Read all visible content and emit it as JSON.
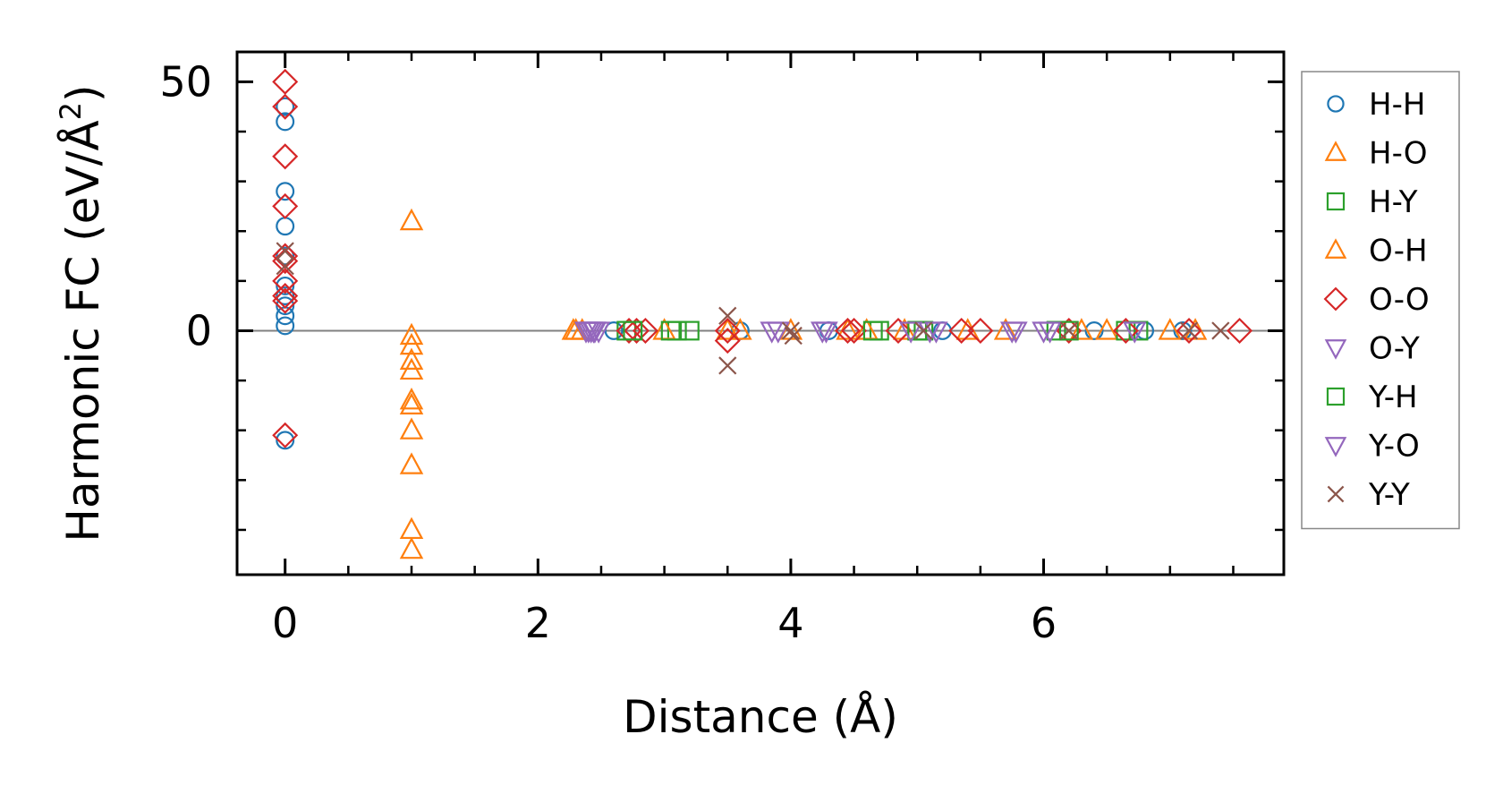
{
  "chart_data": {
    "type": "scatter",
    "title": "",
    "xlabel": "Distance (Å)",
    "ylabel_main": "Harmonic FC (eV/Å",
    "ylabel_sup": "2",
    "ylabel_tail": ")",
    "xlim": [
      -0.38,
      7.9
    ],
    "ylim": [
      -49,
      56
    ],
    "xticks": [
      0,
      2,
      4,
      6
    ],
    "xtick_labels": [
      "0",
      "2",
      "4",
      "6"
    ],
    "yticks": [
      0,
      50
    ],
    "ytick_labels": [
      "0",
      "50"
    ],
    "xminor": [
      0,
      0.5,
      1,
      1.5,
      2,
      2.5,
      3,
      3.5,
      4,
      4.5,
      5,
      5.5,
      6,
      6.5,
      7,
      7.5
    ],
    "yminor": [
      -40,
      -30,
      -20,
      -10,
      0,
      10,
      20,
      30,
      40,
      50
    ],
    "zero_line": true,
    "grid": false,
    "legend_position": "right",
    "series": [
      {
        "name": "H-H",
        "marker": "circle",
        "color": "#1f77b4",
        "points": [
          [
            0,
            45
          ],
          [
            0,
            42
          ],
          [
            0,
            28
          ],
          [
            0,
            21
          ],
          [
            0,
            15
          ],
          [
            0,
            9
          ],
          [
            0,
            7
          ],
          [
            0,
            5
          ],
          [
            0,
            3
          ],
          [
            0,
            1
          ],
          [
            0,
            -22
          ],
          [
            2.6,
            0
          ],
          [
            3.6,
            0
          ],
          [
            4.3,
            0
          ],
          [
            5.2,
            0
          ],
          [
            6.4,
            0
          ],
          [
            6.8,
            0
          ],
          [
            7.1,
            0
          ]
        ]
      },
      {
        "name": "H-O",
        "marker": "triangle-up",
        "color": "#ff7f0e",
        "points": [
          [
            1,
            22
          ],
          [
            1,
            -1
          ],
          [
            1,
            -3
          ],
          [
            1,
            -6
          ],
          [
            1,
            -8
          ],
          [
            1,
            -14
          ],
          [
            1,
            -15
          ],
          [
            1,
            -20
          ],
          [
            1,
            -27
          ],
          [
            1,
            -40
          ],
          [
            1,
            -44
          ],
          [
            2.28,
            0
          ],
          [
            2.35,
            0
          ],
          [
            3.5,
            0
          ],
          [
            3.6,
            0
          ],
          [
            4.45,
            0
          ],
          [
            4.9,
            0
          ],
          [
            5.7,
            0
          ],
          [
            6.5,
            0
          ],
          [
            7.2,
            0
          ]
        ]
      },
      {
        "name": "H-Y",
        "marker": "square",
        "color": "#2ca02c",
        "points": [
          [
            2.7,
            0
          ],
          [
            3.1,
            0
          ],
          [
            3.2,
            0
          ],
          [
            4.7,
            0
          ],
          [
            5.05,
            0
          ],
          [
            6.1,
            0
          ],
          [
            6.65,
            0
          ]
        ]
      },
      {
        "name": "O-H",
        "marker": "triangle-up",
        "color": "#ff7f0e",
        "points": [
          [
            2.3,
            0
          ],
          [
            3.0,
            0
          ],
          [
            4.0,
            0
          ],
          [
            4.6,
            0
          ],
          [
            5.4,
            0
          ],
          [
            6.3,
            0
          ],
          [
            7.0,
            0
          ]
        ]
      },
      {
        "name": "O-O",
        "marker": "diamond",
        "color": "#d62728",
        "points": [
          [
            0,
            50
          ],
          [
            0,
            45
          ],
          [
            0,
            35
          ],
          [
            0,
            25
          ],
          [
            0,
            15
          ],
          [
            0,
            14
          ],
          [
            0,
            10
          ],
          [
            0,
            7
          ],
          [
            0,
            6
          ],
          [
            0,
            -21
          ],
          [
            2.72,
            0
          ],
          [
            2.78,
            0
          ],
          [
            2.85,
            0
          ],
          [
            3.5,
            0
          ],
          [
            3.5,
            -2
          ],
          [
            4.45,
            0
          ],
          [
            4.5,
            0
          ],
          [
            4.85,
            0
          ],
          [
            5.35,
            0
          ],
          [
            5.5,
            0
          ],
          [
            6.2,
            0
          ],
          [
            6.65,
            0
          ],
          [
            7.15,
            0
          ],
          [
            7.55,
            0
          ]
        ]
      },
      {
        "name": "O-Y",
        "marker": "triangle-down",
        "color": "#9467bd",
        "points": [
          [
            2.38,
            0
          ],
          [
            2.42,
            0
          ],
          [
            2.45,
            0
          ],
          [
            2.48,
            0
          ],
          [
            3.85,
            0
          ],
          [
            4.25,
            0
          ],
          [
            5.1,
            0
          ],
          [
            5.75,
            0
          ],
          [
            6.0,
            0
          ]
        ]
      },
      {
        "name": "Y-H",
        "marker": "square",
        "color": "#2ca02c",
        "points": [
          [
            2.75,
            0
          ],
          [
            3.05,
            0
          ],
          [
            4.65,
            0
          ],
          [
            5.0,
            0
          ],
          [
            6.2,
            0
          ],
          [
            6.75,
            0
          ]
        ]
      },
      {
        "name": "Y-O",
        "marker": "triangle-down",
        "color": "#9467bd",
        "points": [
          [
            2.4,
            0
          ],
          [
            2.44,
            0
          ],
          [
            3.9,
            0
          ],
          [
            4.28,
            0
          ],
          [
            4.95,
            0
          ],
          [
            5.15,
            0
          ],
          [
            5.78,
            0
          ],
          [
            6.05,
            0
          ],
          [
            6.72,
            0
          ]
        ]
      },
      {
        "name": "Y-Y",
        "marker": "x",
        "color": "#8c564b",
        "points": [
          [
            0,
            16
          ],
          [
            0,
            13
          ],
          [
            3.5,
            3
          ],
          [
            3.5,
            -7
          ],
          [
            4.0,
            0
          ],
          [
            4.02,
            -1
          ],
          [
            5.05,
            0
          ],
          [
            6.2,
            0
          ],
          [
            7.15,
            0
          ],
          [
            7.4,
            0
          ]
        ]
      }
    ]
  }
}
